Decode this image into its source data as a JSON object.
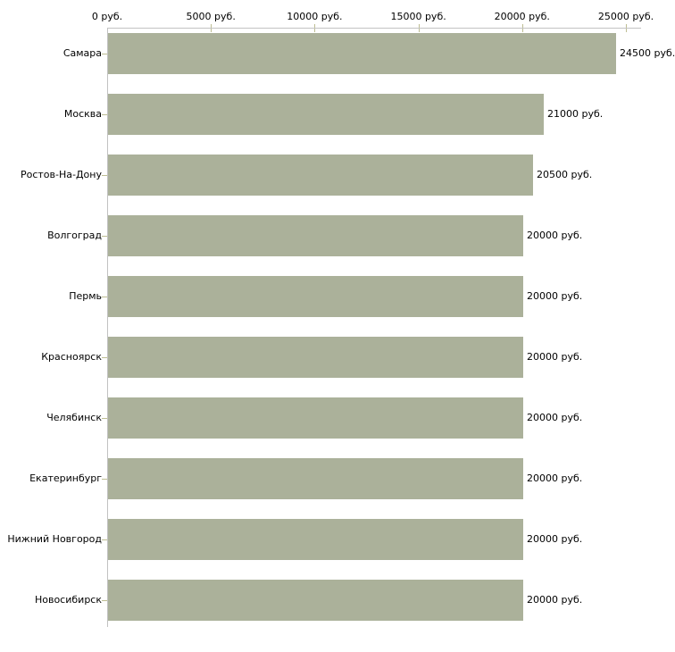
{
  "chart_data": {
    "type": "bar",
    "orientation": "horizontal",
    "title": "",
    "xlabel": "",
    "ylabel": "",
    "unit": "руб.",
    "categories": [
      "Самара",
      "Москва",
      "Ростов-На-Дону",
      "Волгоград",
      "Пермь",
      "Красноярск",
      "Челябинск",
      "Екатеринбург",
      "Нижний Новгород",
      "Новосибирск"
    ],
    "values": [
      24500,
      21000,
      20500,
      20000,
      20000,
      20000,
      20000,
      20000,
      20000,
      20000
    ],
    "value_labels": [
      "24500 руб.",
      "21000 руб.",
      "20500 руб.",
      "20000 руб.",
      "20000 руб.",
      "20000 руб.",
      "20000 руб.",
      "20000 руб.",
      "20000 руб.",
      "20000 руб."
    ],
    "x_axis": {
      "position": "top",
      "min": 0,
      "max": 25000,
      "tick_values": [
        0,
        5000,
        10000,
        15000,
        20000,
        25000
      ],
      "tick_labels": [
        "0 руб.",
        "5000 руб.",
        "10000 руб.",
        "15000 руб.",
        "20000 руб.",
        "25000 руб."
      ]
    },
    "grid": false,
    "legend": false,
    "colors": {
      "bar": "#abb19a",
      "axis_line": "#c2c2c2",
      "tick": "#bdbd92",
      "text": "#000000",
      "background": "#ffffff"
    }
  }
}
